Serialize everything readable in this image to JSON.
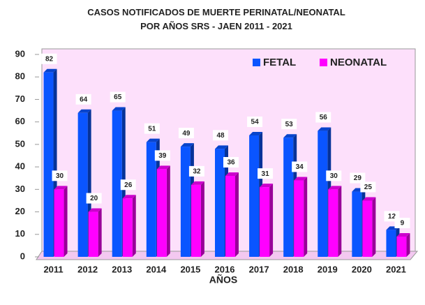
{
  "chart_data": {
    "type": "bar3d",
    "title": "CASOS NOTIFICADOS  DE MUERTE PERINATAL/NEONATAL  POR AÑOS SRS - JAEN  2011 - 2021",
    "x_label": "AÑOS",
    "categories": [
      "2011",
      "2012",
      "2013",
      "2014",
      "2015",
      "2016",
      "2017",
      "2018",
      "2019",
      "2020",
      "2021"
    ],
    "series": [
      {
        "name": "FETAL",
        "color": "#0a55ff",
        "values": [
          82,
          64,
          65,
          51,
          49,
          48,
          54,
          53,
          56,
          29,
          12
        ]
      },
      {
        "name": "NEONATAL",
        "color": "#ff00ff",
        "values": [
          30,
          20,
          26,
          39,
          32,
          36,
          31,
          34,
          30,
          25,
          9
        ]
      }
    ],
    "ylim": [
      0,
      90
    ],
    "yticks": [
      0,
      10,
      20,
      30,
      40,
      50,
      60,
      70,
      80,
      90
    ],
    "grid": false,
    "legend": "top-right"
  }
}
